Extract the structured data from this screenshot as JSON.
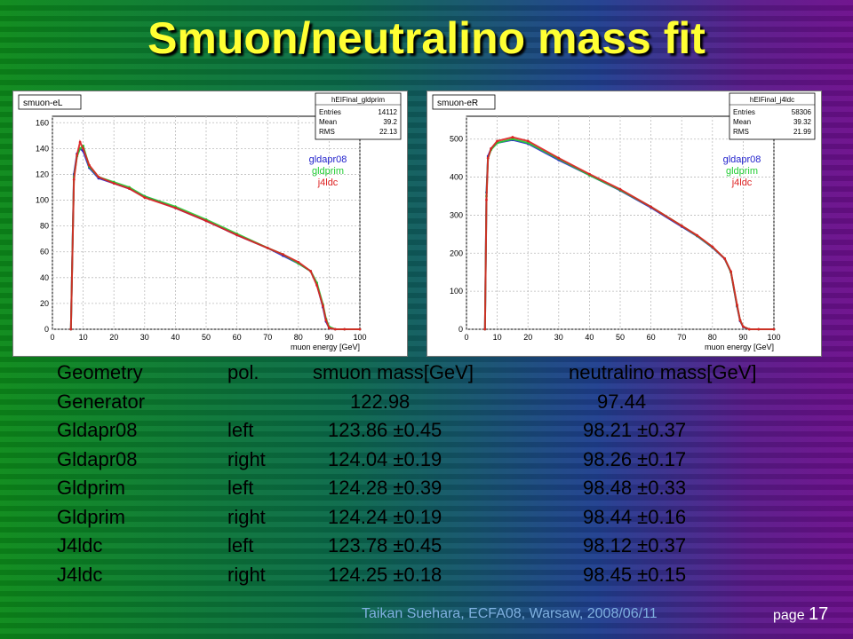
{
  "title": "Smuon/neutralino mass fit",
  "chart_data": [
    {
      "type": "line",
      "title": "smuon-eL",
      "xlabel": "muon energy [GeV]",
      "xlim": [
        0,
        100
      ],
      "ylim": [
        0,
        165
      ],
      "x_ticks": [
        0,
        10,
        20,
        30,
        40,
        50,
        60,
        70,
        80,
        90,
        100
      ],
      "y_ticks": [
        0,
        20,
        40,
        60,
        80,
        100,
        120,
        140,
        160
      ],
      "stats": {
        "name": "hEIFinal_gldprim",
        "entries": "14112",
        "mean": "39.2",
        "rms": "22.13"
      },
      "stats_labels": {
        "entries": "Entries",
        "mean": "Mean",
        "rms": "RMS"
      },
      "x": [
        6,
        7,
        8,
        9,
        10,
        12,
        15,
        20,
        25,
        30,
        40,
        50,
        60,
        70,
        75,
        80,
        84,
        86,
        88,
        89,
        90,
        92,
        95,
        100
      ],
      "series": [
        {
          "name": "gldapr08",
          "color": "#2222cc",
          "values": [
            0,
            120,
            136,
            140,
            138,
            125,
            117,
            113,
            109,
            103,
            94,
            84,
            73,
            63,
            57,
            51,
            45,
            35,
            17,
            6,
            1,
            0,
            0,
            0
          ]
        },
        {
          "name": "gldprim",
          "color": "#22cc33",
          "values": [
            0,
            118,
            134,
            140,
            142,
            126,
            118,
            114,
            110,
            103,
            95,
            85,
            74,
            63,
            58,
            51,
            45,
            36,
            19,
            8,
            2,
            0,
            0,
            0
          ]
        },
        {
          "name": "j4ldc",
          "color": "#dd2222",
          "values": [
            0,
            116,
            135,
            145,
            140,
            127,
            118,
            113,
            109,
            102,
            94,
            84,
            73,
            63,
            58,
            52,
            45,
            34,
            18,
            7,
            1,
            0,
            0,
            0
          ]
        }
      ]
    },
    {
      "type": "line",
      "title": "smuon-eR",
      "xlabel": "muon energy [GeV]",
      "xlim": [
        0,
        100
      ],
      "ylim": [
        0,
        560
      ],
      "x_ticks": [
        0,
        10,
        20,
        30,
        40,
        50,
        60,
        70,
        80,
        90,
        100
      ],
      "y_ticks": [
        0,
        100,
        200,
        300,
        400,
        500
      ],
      "stats": {
        "name": "hEIFinal_j4ldc",
        "entries": "58306",
        "mean": "39.32",
        "rms": "21.99"
      },
      "stats_labels": {
        "entries": "Entries",
        "mean": "Mean",
        "rms": "RMS"
      },
      "x": [
        6,
        6.5,
        7,
        8,
        10,
        15,
        20,
        30,
        40,
        50,
        60,
        70,
        75,
        80,
        84,
        86,
        88,
        89,
        90,
        92,
        95,
        100
      ],
      "series": [
        {
          "name": "gldapr08",
          "color": "#2222cc",
          "values": [
            0,
            360,
            455,
            475,
            490,
            498,
            488,
            445,
            405,
            365,
            320,
            270,
            245,
            215,
            185,
            150,
            60,
            22,
            6,
            0,
            0,
            0
          ]
        },
        {
          "name": "gldprim",
          "color": "#22cc33",
          "values": [
            0,
            350,
            450,
            472,
            490,
            500,
            490,
            448,
            405,
            366,
            322,
            272,
            246,
            216,
            186,
            150,
            62,
            24,
            7,
            0,
            0,
            0
          ]
        },
        {
          "name": "j4ldc",
          "color": "#dd2222",
          "values": [
            0,
            340,
            450,
            475,
            495,
            505,
            495,
            450,
            408,
            368,
            322,
            272,
            247,
            217,
            186,
            152,
            64,
            24,
            7,
            0,
            0,
            0
          ]
        }
      ]
    }
  ],
  "table": {
    "headers": [
      "Geometry",
      "pol.",
      "smuon mass[GeV]",
      "neutralino mass[GeV]"
    ],
    "generator": {
      "label": "Generator",
      "smuon": "122.98",
      "neutralino": "97.44"
    },
    "rows": [
      {
        "geometry": "Gldapr08",
        "pol": "left",
        "smuon": "123.86 ±0.45",
        "neutralino": "98.21 ±0.37"
      },
      {
        "geometry": "Gldapr08",
        "pol": "right",
        "smuon": "124.04 ±0.19",
        "neutralino": "98.26 ±0.17"
      },
      {
        "geometry": "Gldprim",
        "pol": "left",
        "smuon": "124.28 ±0.39",
        "neutralino": "98.48 ±0.33"
      },
      {
        "geometry": "Gldprim",
        "pol": "right",
        "smuon": "124.24 ±0.19",
        "neutralino": "98.44 ±0.16"
      },
      {
        "geometry": "J4ldc",
        "pol": "left",
        "smuon": "123.78 ±0.45",
        "neutralino": "98.12 ±0.37"
      },
      {
        "geometry": "J4ldc",
        "pol": "right",
        "smuon": "124.25 ±0.18",
        "neutralino": "98.45 ±0.15"
      }
    ]
  },
  "footer": "Taikan Suehara, ECFA08, Warsaw, 2008/06/11",
  "page_label": "page",
  "page_number": "17"
}
